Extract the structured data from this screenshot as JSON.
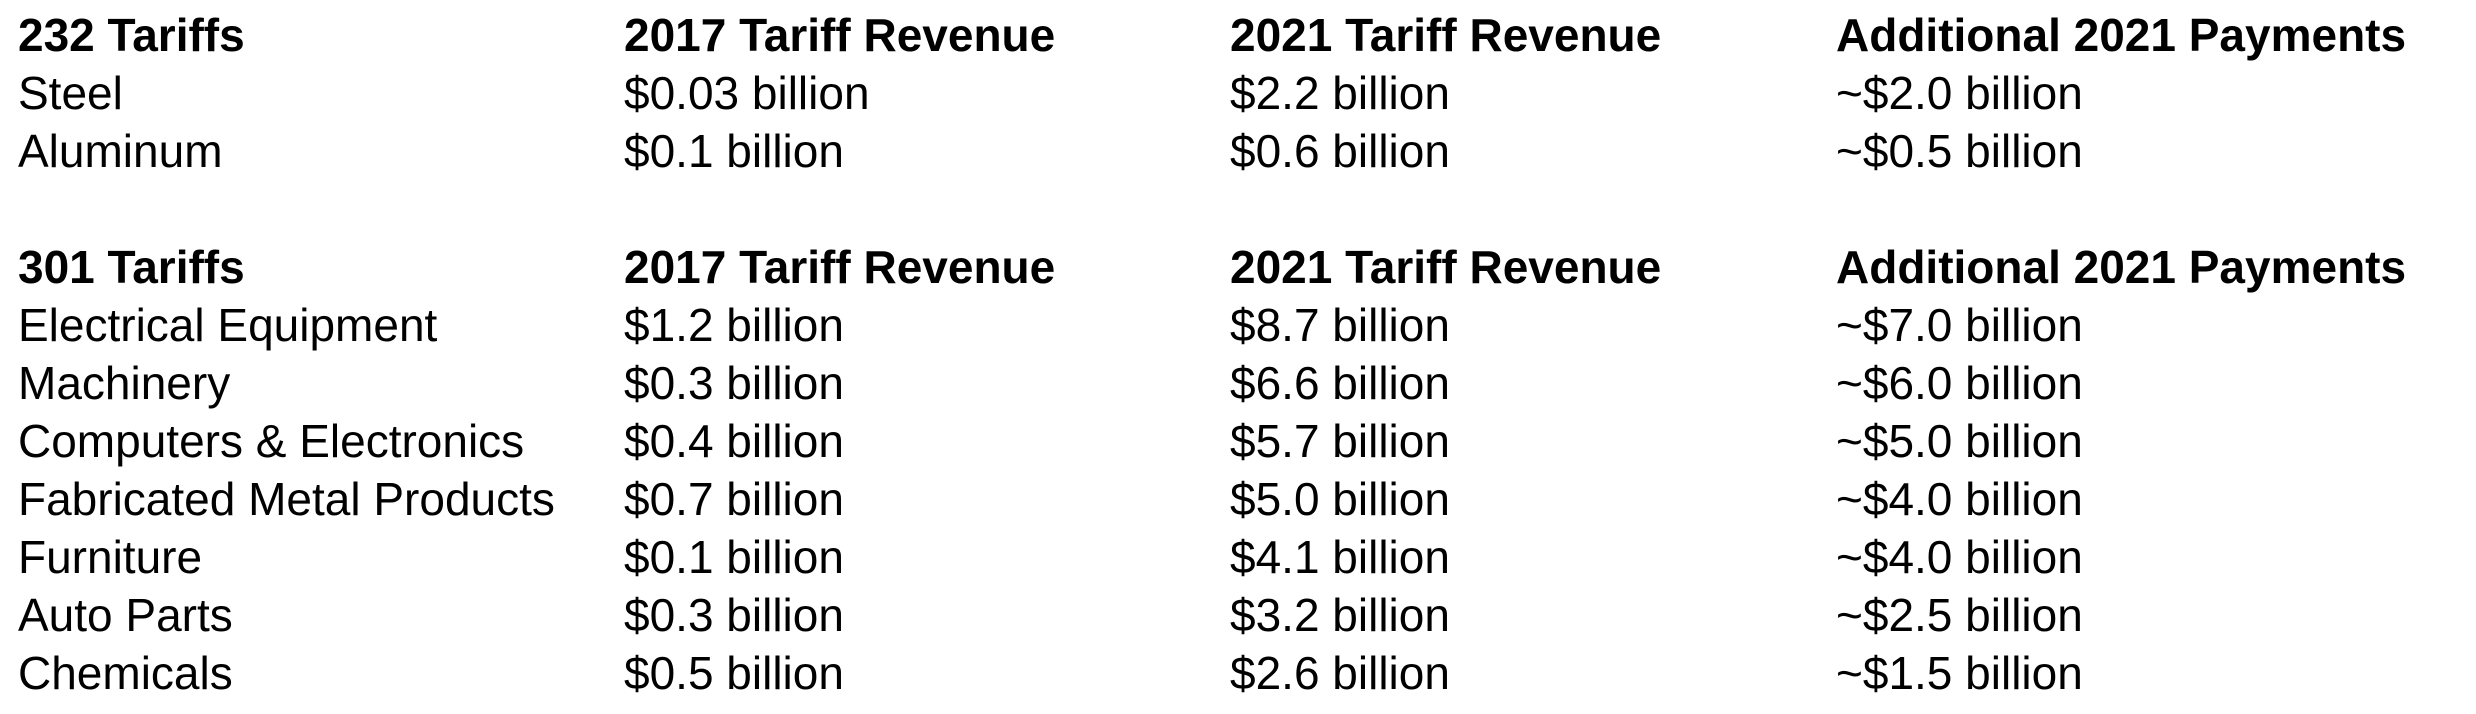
{
  "sections": [
    {
      "headers": [
        "232 Tariffs",
        "2017 Tariff Revenue",
        "2021 Tariff Revenue",
        "Additional 2021 Payments"
      ],
      "rows": [
        [
          "Steel",
          "$0.03 billion",
          "$2.2 billion",
          "~$2.0 billion"
        ],
        [
          "Aluminum",
          "$0.1 billion",
          "$0.6 billion",
          "~$0.5 billion"
        ]
      ]
    },
    {
      "headers": [
        "301 Tariffs",
        "2017 Tariff Revenue",
        "2021 Tariff Revenue",
        "Additional 2021 Payments"
      ],
      "rows": [
        [
          "Electrical Equipment",
          "$1.2 billion",
          "$8.7 billion",
          "~$7.0 billion"
        ],
        [
          "Machinery",
          "$0.3 billion",
          "$6.6 billion",
          "~$6.0 billion"
        ],
        [
          "Computers & Electronics",
          "$0.4 billion",
          "$5.7 billion",
          "~$5.0 billion"
        ],
        [
          "Fabricated Metal Products",
          "$0.7 billion",
          "$5.0 billion",
          "~$4.0 billion"
        ],
        [
          "Furniture",
          "$0.1 billion",
          "$4.1 billion",
          "~$4.0 billion"
        ],
        [
          "Auto Parts",
          "$0.3 billion",
          "$3.2 billion",
          "~$2.5 billion"
        ],
        [
          "Chemicals",
          "$0.5 billion",
          "$2.6 billion",
          "~$1.5 billion"
        ]
      ]
    }
  ]
}
